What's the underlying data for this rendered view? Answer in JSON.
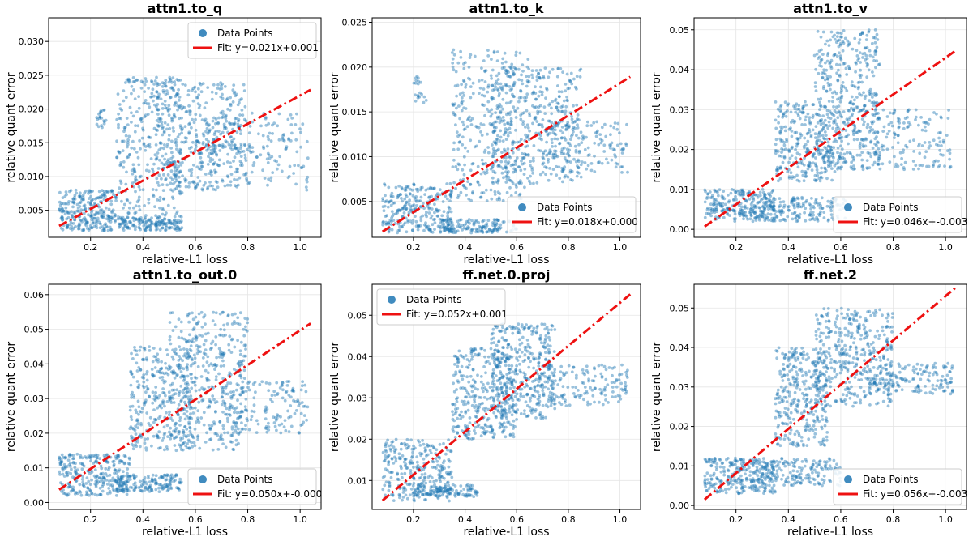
{
  "figure_title": "",
  "chart_data": [
    {
      "type": "scatter",
      "title": "attn1.to_q",
      "xlabel": "relative-L1 loss",
      "ylabel": "relative quant error",
      "xlim": [
        0.04,
        1.08
      ],
      "ylim": [
        0.001,
        0.0335
      ],
      "xticks": [
        0.2,
        0.4,
        0.6,
        0.8,
        1.0
      ],
      "xtick_labels": [
        "0.2",
        "0.4",
        "0.6",
        "0.8",
        "1.0"
      ],
      "yticks": [
        0.005,
        0.01,
        0.015,
        0.02,
        0.025,
        0.03
      ],
      "ytick_labels": [
        "0.005",
        "0.010",
        "0.015",
        "0.020",
        "0.025",
        "0.030"
      ],
      "grid": true,
      "legend_position": "top-right",
      "legend": [
        "Data Points",
        "Fit: y=0.021x+0.001"
      ],
      "fit": {
        "slope": 0.021,
        "intercept": 0.001,
        "x_range": [
          0.08,
          1.04
        ]
      },
      "point_color": "#1f77b4",
      "fit_color": "#ee1111",
      "clusters": [
        {
          "x": [
            0.08,
            0.3
          ],
          "y": [
            0.002,
            0.008
          ],
          "n": 260
        },
        {
          "x": [
            0.3,
            0.55
          ],
          "y": [
            0.002,
            0.004
          ],
          "n": 160
        },
        {
          "x": [
            0.3,
            0.55
          ],
          "y": [
            0.004,
            0.025
          ],
          "n": 320
        },
        {
          "x": [
            0.45,
            0.8
          ],
          "y": [
            0.008,
            0.024
          ],
          "n": 380
        },
        {
          "x": [
            0.6,
            1.03
          ],
          "y": [
            0.008,
            0.02
          ],
          "n": 180
        },
        {
          "x": [
            0.22,
            0.26
          ],
          "y": [
            0.017,
            0.02
          ],
          "n": 20
        }
      ]
    },
    {
      "type": "scatter",
      "title": "attn1.to_k",
      "xlabel": "relative-L1 loss",
      "ylabel": "relative quant error",
      "xlim": [
        0.04,
        1.08
      ],
      "ylim": [
        0.001,
        0.0255
      ],
      "xticks": [
        0.2,
        0.4,
        0.6,
        0.8,
        1.0
      ],
      "xtick_labels": [
        "0.2",
        "0.4",
        "0.6",
        "0.8",
        "1.0"
      ],
      "yticks": [
        0.005,
        0.01,
        0.015,
        0.02,
        0.025
      ],
      "ytick_labels": [
        "0.005",
        "0.010",
        "0.015",
        "0.020",
        "0.025"
      ],
      "grid": true,
      "legend_position": "bottom-right",
      "legend": [
        "Data Points",
        "Fit: y=0.018x+0.000"
      ],
      "fit": {
        "slope": 0.018,
        "intercept": 0.0002,
        "x_range": [
          0.08,
          1.04
        ]
      },
      "point_color": "#1f77b4",
      "fit_color": "#ee1111",
      "clusters": [
        {
          "x": [
            0.08,
            0.35
          ],
          "y": [
            0.0015,
            0.007
          ],
          "n": 260
        },
        {
          "x": [
            0.3,
            0.6
          ],
          "y": [
            0.0015,
            0.003
          ],
          "n": 150
        },
        {
          "x": [
            0.35,
            0.65
          ],
          "y": [
            0.005,
            0.022
          ],
          "n": 340
        },
        {
          "x": [
            0.5,
            0.85
          ],
          "y": [
            0.007,
            0.02
          ],
          "n": 380
        },
        {
          "x": [
            0.7,
            1.03
          ],
          "y": [
            0.008,
            0.014
          ],
          "n": 140
        },
        {
          "x": [
            0.2,
            0.25
          ],
          "y": [
            0.016,
            0.019
          ],
          "n": 20
        }
      ]
    },
    {
      "type": "scatter",
      "title": "attn1.to_v",
      "xlabel": "relative-L1 loss",
      "ylabel": "relative quant error",
      "xlim": [
        0.04,
        1.08
      ],
      "ylim": [
        -0.002,
        0.053
      ],
      "xticks": [
        0.2,
        0.4,
        0.6,
        0.8,
        1.0
      ],
      "xtick_labels": [
        "0.2",
        "0.4",
        "0.6",
        "0.8",
        "1.0"
      ],
      "yticks": [
        0.0,
        0.01,
        0.02,
        0.03,
        0.04,
        0.05
      ],
      "ytick_labels": [
        "0.00",
        "0.01",
        "0.02",
        "0.03",
        "0.04",
        "0.05"
      ],
      "grid": true,
      "legend_position": "bottom-right",
      "legend": [
        "Data Points",
        "Fit: y=0.046x+-0.003"
      ],
      "fit": {
        "slope": 0.046,
        "intercept": -0.003,
        "x_range": [
          0.08,
          1.04
        ]
      },
      "point_color": "#1f77b4",
      "fit_color": "#ee1111",
      "clusters": [
        {
          "x": [
            0.08,
            0.35
          ],
          "y": [
            0.002,
            0.01
          ],
          "n": 260
        },
        {
          "x": [
            0.3,
            0.62
          ],
          "y": [
            0.002,
            0.008
          ],
          "n": 160
        },
        {
          "x": [
            0.35,
            0.6
          ],
          "y": [
            0.012,
            0.032
          ],
          "n": 300
        },
        {
          "x": [
            0.5,
            0.75
          ],
          "y": [
            0.015,
            0.05
          ],
          "n": 420
        },
        {
          "x": [
            0.7,
            1.03
          ],
          "y": [
            0.015,
            0.03
          ],
          "n": 160
        }
      ]
    },
    {
      "type": "scatter",
      "title": "attn1.to_out.0",
      "xlabel": "relative-L1 loss",
      "ylabel": "relative quant error",
      "xlim": [
        0.04,
        1.08
      ],
      "ylim": [
        -0.002,
        0.063
      ],
      "xticks": [
        0.2,
        0.4,
        0.6,
        0.8,
        1.0
      ],
      "xtick_labels": [
        "0.2",
        "0.4",
        "0.6",
        "0.8",
        "1.0"
      ],
      "yticks": [
        0.0,
        0.01,
        0.02,
        0.03,
        0.04,
        0.05,
        0.06
      ],
      "ytick_labels": [
        "0.00",
        "0.01",
        "0.02",
        "0.03",
        "0.04",
        "0.05",
        "0.06"
      ],
      "grid": true,
      "legend_position": "bottom-right",
      "legend": [
        "Data Points",
        "Fit: y=0.050x+-0.000"
      ],
      "fit": {
        "slope": 0.05,
        "intercept": -0.0003,
        "x_range": [
          0.08,
          1.04
        ]
      },
      "point_color": "#1f77b4",
      "fit_color": "#ee1111",
      "clusters": [
        {
          "x": [
            0.08,
            0.35
          ],
          "y": [
            0.002,
            0.014
          ],
          "n": 280
        },
        {
          "x": [
            0.3,
            0.55
          ],
          "y": [
            0.003,
            0.008
          ],
          "n": 150
        },
        {
          "x": [
            0.35,
            0.6
          ],
          "y": [
            0.015,
            0.045
          ],
          "n": 330
        },
        {
          "x": [
            0.5,
            0.8
          ],
          "y": [
            0.015,
            0.055
          ],
          "n": 400
        },
        {
          "x": [
            0.7,
            1.03
          ],
          "y": [
            0.02,
            0.035
          ],
          "n": 150
        }
      ]
    },
    {
      "type": "scatter",
      "title": "ff.net.0.proj",
      "xlabel": "relative-L1 loss",
      "ylabel": "relative quant error",
      "xlim": [
        0.04,
        1.08
      ],
      "ylim": [
        0.003,
        0.0575
      ],
      "xticks": [
        0.2,
        0.4,
        0.6,
        0.8,
        1.0
      ],
      "xtick_labels": [
        "0.2",
        "0.4",
        "0.6",
        "0.8",
        "1.0"
      ],
      "yticks": [
        0.01,
        0.02,
        0.03,
        0.04,
        0.05
      ],
      "ytick_labels": [
        "0.01",
        "0.02",
        "0.03",
        "0.04",
        "0.05"
      ],
      "grid": true,
      "legend_position": "top-left",
      "legend": [
        "Data Points",
        "Fit: y=0.052x+0.001"
      ],
      "fit": {
        "slope": 0.052,
        "intercept": 0.001,
        "x_range": [
          0.08,
          1.04
        ]
      },
      "point_color": "#1f77b4",
      "fit_color": "#ee1111",
      "clusters": [
        {
          "x": [
            0.08,
            0.35
          ],
          "y": [
            0.005,
            0.02
          ],
          "n": 280
        },
        {
          "x": [
            0.2,
            0.45
          ],
          "y": [
            0.006,
            0.009
          ],
          "n": 120
        },
        {
          "x": [
            0.35,
            0.6
          ],
          "y": [
            0.02,
            0.042
          ],
          "n": 340
        },
        {
          "x": [
            0.5,
            0.75
          ],
          "y": [
            0.025,
            0.048
          ],
          "n": 380
        },
        {
          "x": [
            0.7,
            1.03
          ],
          "y": [
            0.028,
            0.038
          ],
          "n": 150
        }
      ]
    },
    {
      "type": "scatter",
      "title": "ff.net.2",
      "xlabel": "relative-L1 loss",
      "ylabel": "relative quant error",
      "xlim": [
        0.04,
        1.08
      ],
      "ylim": [
        -0.001,
        0.056
      ],
      "xticks": [
        0.2,
        0.4,
        0.6,
        0.8,
        1.0
      ],
      "xtick_labels": [
        "0.2",
        "0.4",
        "0.6",
        "0.8",
        "1.0"
      ],
      "yticks": [
        0.0,
        0.01,
        0.02,
        0.03,
        0.04,
        0.05
      ],
      "ytick_labels": [
        "0.00",
        "0.01",
        "0.02",
        "0.03",
        "0.04",
        "0.05"
      ],
      "grid": true,
      "legend_position": "bottom-right",
      "legend": [
        "Data Points",
        "Fit: y=0.056x+-0.003"
      ],
      "fit": {
        "slope": 0.056,
        "intercept": -0.003,
        "x_range": [
          0.08,
          1.04
        ]
      },
      "point_color": "#1f77b4",
      "fit_color": "#ee1111",
      "clusters": [
        {
          "x": [
            0.08,
            0.35
          ],
          "y": [
            0.003,
            0.012
          ],
          "n": 270
        },
        {
          "x": [
            0.3,
            0.6
          ],
          "y": [
            0.005,
            0.012
          ],
          "n": 160
        },
        {
          "x": [
            0.35,
            0.55
          ],
          "y": [
            0.015,
            0.04
          ],
          "n": 320
        },
        {
          "x": [
            0.5,
            0.8
          ],
          "y": [
            0.025,
            0.05
          ],
          "n": 380
        },
        {
          "x": [
            0.7,
            1.03
          ],
          "y": [
            0.028,
            0.036
          ],
          "n": 150
        }
      ]
    }
  ]
}
